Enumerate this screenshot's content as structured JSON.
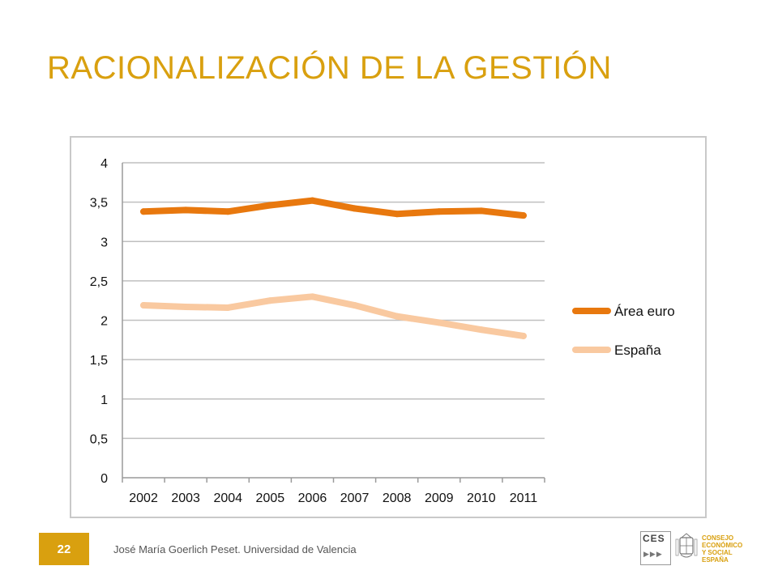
{
  "slide": {
    "title": "RACIONALIZACIÓN DE LA GESTIÓN",
    "page_number": "22",
    "footer": "José María Goerlich Peset. Universidad de Valencia"
  },
  "logo": {
    "letters": "CES",
    "arrows": "▶▶▶",
    "lines": [
      "CONSEJO",
      "ECONÓMICO",
      "Y SOCIAL",
      "ESPAÑA"
    ],
    "seal_icon": "coat-of-arms-icon"
  },
  "colors": {
    "accent": "#D9A00F",
    "area_euro": "#E8780E",
    "espana": "#F9C9A0",
    "grid": "#bfbfbf"
  },
  "chart_data": {
    "type": "line",
    "categories": [
      "2002",
      "2003",
      "2004",
      "2005",
      "2006",
      "2007",
      "2008",
      "2009",
      "2010",
      "2011"
    ],
    "series": [
      {
        "name": "Área euro",
        "values": [
          3.38,
          3.4,
          3.38,
          3.46,
          3.52,
          3.42,
          3.35,
          3.38,
          3.39,
          3.33
        ]
      },
      {
        "name": "España",
        "values": [
          2.19,
          2.17,
          2.16,
          2.25,
          2.3,
          2.19,
          2.05,
          1.97,
          1.88,
          1.8
        ]
      }
    ],
    "y_ticks": [
      "0",
      "0,5",
      "1",
      "1,5",
      "2",
      "2,5",
      "3",
      "3,5",
      "4"
    ],
    "ylim": [
      0,
      4
    ],
    "grid": true,
    "legend_position": "right",
    "title": "",
    "xlabel": "",
    "ylabel": ""
  }
}
